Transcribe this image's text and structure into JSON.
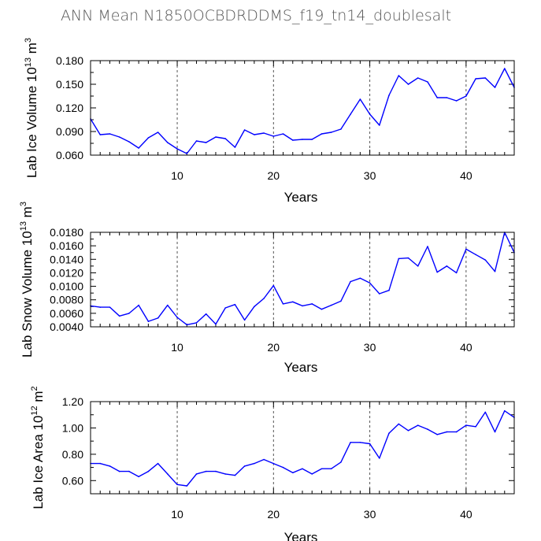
{
  "figure": {
    "title": "ANN Mean N1850OCBDRDDMS_f19_tn14_doublesalt"
  },
  "chart_data": [
    {
      "type": "line",
      "xlabel": "Years",
      "ylabel": {
        "text": "Lab Ice Volume 10",
        "exp": "13",
        "unit": " m",
        "unit_exp": "3"
      },
      "xlim": [
        1,
        45
      ],
      "ylim": [
        0.06,
        0.18
      ],
      "xticks": [
        10,
        20,
        30,
        40
      ],
      "xtick_labels": [
        "10",
        "20",
        "30",
        "40"
      ],
      "yticks": [
        0.06,
        0.09,
        0.12,
        0.15,
        0.18
      ],
      "ytick_labels": [
        "0.060",
        "0.090",
        "0.120",
        "0.150",
        "0.180"
      ],
      "grid": "vertical-dashed",
      "color": "#0000ff",
      "x": [
        1,
        2,
        3,
        4,
        5,
        6,
        7,
        8,
        9,
        10,
        11,
        12,
        13,
        14,
        15,
        16,
        17,
        18,
        19,
        20,
        21,
        22,
        23,
        24,
        25,
        26,
        27,
        28,
        29,
        30,
        31,
        32,
        33,
        34,
        35,
        36,
        37,
        38,
        39,
        40,
        41,
        42,
        43,
        44,
        45
      ],
      "values": [
        0.106,
        0.086,
        0.087,
        0.083,
        0.077,
        0.069,
        0.082,
        0.089,
        0.076,
        0.068,
        0.062,
        0.078,
        0.076,
        0.083,
        0.081,
        0.07,
        0.092,
        0.086,
        0.088,
        0.084,
        0.087,
        0.079,
        0.08,
        0.08,
        0.087,
        0.089,
        0.093,
        0.112,
        0.131,
        0.112,
        0.098,
        0.136,
        0.161,
        0.15,
        0.158,
        0.153,
        0.133,
        0.133,
        0.129,
        0.135,
        0.157,
        0.158,
        0.146,
        0.17,
        0.146
      ]
    },
    {
      "type": "line",
      "xlabel": "Years",
      "ylabel": {
        "text": "Lab Snow Volume 10",
        "exp": "13",
        "unit": " m",
        "unit_exp": "3"
      },
      "xlim": [
        1,
        45
      ],
      "ylim": [
        0.004,
        0.018
      ],
      "xticks": [
        10,
        20,
        30,
        40
      ],
      "xtick_labels": [
        "10",
        "20",
        "30",
        "40"
      ],
      "yticks": [
        0.004,
        0.006,
        0.008,
        0.01,
        0.012,
        0.014,
        0.016,
        0.018
      ],
      "ytick_labels": [
        "0.0040",
        "0.0060",
        "0.0080",
        "0.0100",
        "0.0120",
        "0.0140",
        "0.0160",
        "0.0180"
      ],
      "grid": "vertical-dashed",
      "color": "#0000ff",
      "x": [
        1,
        2,
        3,
        4,
        5,
        6,
        7,
        8,
        9,
        10,
        11,
        12,
        13,
        14,
        15,
        16,
        17,
        18,
        19,
        20,
        21,
        22,
        23,
        24,
        25,
        26,
        27,
        28,
        29,
        30,
        31,
        32,
        33,
        34,
        35,
        36,
        37,
        38,
        39,
        40,
        41,
        42,
        43,
        44,
        45
      ],
      "values": [
        0.0071,
        0.0069,
        0.0069,
        0.0056,
        0.006,
        0.0072,
        0.0048,
        0.0053,
        0.0072,
        0.0054,
        0.0043,
        0.0046,
        0.0059,
        0.0044,
        0.0068,
        0.0073,
        0.005,
        0.007,
        0.0082,
        0.0101,
        0.0074,
        0.0077,
        0.0071,
        0.0074,
        0.0066,
        0.0072,
        0.0078,
        0.0107,
        0.0112,
        0.0105,
        0.0089,
        0.0094,
        0.0141,
        0.0142,
        0.013,
        0.0159,
        0.0121,
        0.013,
        0.012,
        0.0155,
        0.0147,
        0.0139,
        0.0122,
        0.018,
        0.015
      ]
    },
    {
      "type": "line",
      "xlabel": "Years",
      "ylabel": {
        "text": "Lab Ice Area 10",
        "exp": "12",
        "unit": " m",
        "unit_exp": "2"
      },
      "xlim": [
        1,
        45
      ],
      "ylim": [
        0.5,
        1.2
      ],
      "xticks": [
        10,
        20,
        30,
        40
      ],
      "xtick_labels": [
        "10",
        "20",
        "30",
        "40"
      ],
      "yticks": [
        0.6,
        0.8,
        1.0,
        1.2
      ],
      "ytick_labels": [
        "0.60",
        "0.80",
        "1.00",
        "1.20"
      ],
      "grid": "vertical-dashed",
      "color": "#0000ff",
      "x": [
        1,
        2,
        3,
        4,
        5,
        6,
        7,
        8,
        9,
        10,
        11,
        12,
        13,
        14,
        15,
        16,
        17,
        18,
        19,
        20,
        21,
        22,
        23,
        24,
        25,
        26,
        27,
        28,
        29,
        30,
        31,
        32,
        33,
        34,
        35,
        36,
        37,
        38,
        39,
        40,
        41,
        42,
        43,
        44,
        45
      ],
      "values": [
        0.73,
        0.73,
        0.71,
        0.67,
        0.67,
        0.63,
        0.67,
        0.73,
        0.65,
        0.57,
        0.56,
        0.65,
        0.67,
        0.67,
        0.65,
        0.64,
        0.71,
        0.73,
        0.76,
        0.73,
        0.7,
        0.66,
        0.69,
        0.65,
        0.69,
        0.69,
        0.74,
        0.89,
        0.89,
        0.88,
        0.77,
        0.96,
        1.03,
        0.98,
        1.02,
        0.99,
        0.95,
        0.97,
        0.97,
        1.02,
        1.01,
        1.12,
        0.97,
        1.13,
        1.08
      ]
    }
  ]
}
